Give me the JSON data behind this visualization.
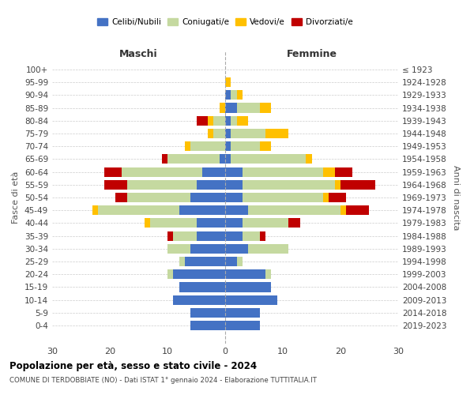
{
  "age_groups": [
    "100+",
    "95-99",
    "90-94",
    "85-89",
    "80-84",
    "75-79",
    "70-74",
    "65-69",
    "60-64",
    "55-59",
    "50-54",
    "45-49",
    "40-44",
    "35-39",
    "30-34",
    "25-29",
    "20-24",
    "15-19",
    "10-14",
    "5-9",
    "0-4"
  ],
  "birth_years": [
    "≤ 1923",
    "1924-1928",
    "1929-1933",
    "1934-1938",
    "1939-1943",
    "1944-1948",
    "1949-1953",
    "1954-1958",
    "1959-1963",
    "1964-1968",
    "1969-1973",
    "1974-1978",
    "1979-1983",
    "1984-1988",
    "1989-1993",
    "1994-1998",
    "1999-2003",
    "2004-2008",
    "2009-2013",
    "2014-2018",
    "2019-2023"
  ],
  "male_celibi": [
    0,
    0,
    0,
    0,
    0,
    0,
    0,
    1,
    4,
    5,
    6,
    8,
    5,
    5,
    6,
    7,
    9,
    8,
    9,
    6,
    6
  ],
  "male_coniugati": [
    0,
    0,
    0,
    0,
    2,
    2,
    6,
    9,
    14,
    12,
    11,
    14,
    8,
    4,
    4,
    1,
    1,
    0,
    0,
    0,
    0
  ],
  "male_vedovi": [
    0,
    0,
    0,
    1,
    1,
    1,
    1,
    0,
    0,
    0,
    0,
    1,
    1,
    0,
    0,
    0,
    0,
    0,
    0,
    0,
    0
  ],
  "male_divorziati": [
    0,
    0,
    0,
    0,
    2,
    0,
    0,
    1,
    3,
    4,
    2,
    0,
    0,
    1,
    0,
    0,
    0,
    0,
    0,
    0,
    0
  ],
  "female_celibi": [
    0,
    0,
    1,
    2,
    1,
    1,
    1,
    1,
    3,
    3,
    3,
    4,
    3,
    3,
    4,
    2,
    7,
    8,
    9,
    6,
    6
  ],
  "female_coniugati": [
    0,
    0,
    1,
    4,
    1,
    6,
    5,
    13,
    14,
    16,
    14,
    16,
    8,
    3,
    7,
    1,
    1,
    0,
    0,
    0,
    0
  ],
  "female_vedovi": [
    0,
    1,
    1,
    2,
    2,
    4,
    2,
    1,
    2,
    1,
    1,
    1,
    0,
    0,
    0,
    0,
    0,
    0,
    0,
    0,
    0
  ],
  "female_divorziati": [
    0,
    0,
    0,
    0,
    0,
    0,
    0,
    0,
    3,
    6,
    3,
    4,
    2,
    1,
    0,
    0,
    0,
    0,
    0,
    0,
    0
  ],
  "color_celibi": "#4472c4",
  "color_coniugati": "#c5d9a0",
  "color_vedovi": "#ffc000",
  "color_divorziati": "#c00000",
  "xlim": 30,
  "title1": "Popolazione per età, sesso e stato civile - 2024",
  "title2": "COMUNE DI TERDOBBIATE (NO) - Dati ISTAT 1° gennaio 2024 - Elaborazione TUTTITALIA.IT",
  "ylabel_left": "Fasce di età",
  "ylabel_right": "Anni di nascita",
  "xlabel_left": "Maschi",
  "xlabel_right": "Femmine",
  "background_color": "#ffffff",
  "grid_color": "#cccccc"
}
